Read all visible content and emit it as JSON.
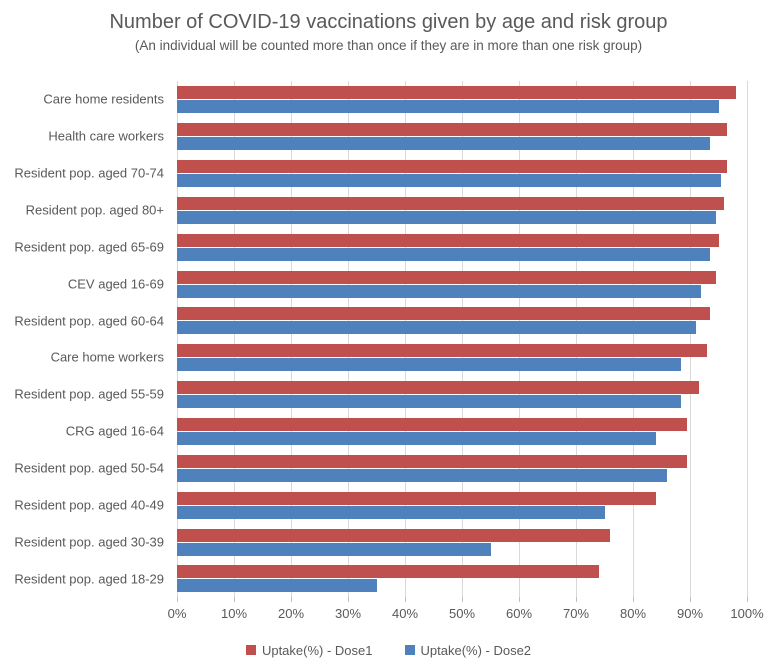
{
  "header": {
    "title": "Number of COVID-19 vaccinations given by age and risk group",
    "subtitle": "(An individual will be counted more than once if they are in more than one risk group)"
  },
  "chart_data": {
    "type": "bar",
    "orientation": "horizontal",
    "title": "Number of COVID-19 vaccinations given by age and risk group",
    "subtitle": "(An individual will be counted more than once if they are in more than one risk group)",
    "categories": [
      "Care home residents",
      "Health care workers",
      "Resident pop. aged 70-74",
      "Resident pop. aged 80+",
      "Resident pop. aged 65-69",
      "CEV aged 16-69",
      "Resident pop. aged 60-64",
      "Care home workers",
      "Resident pop. aged 55-59",
      "CRG aged 16-64",
      "Resident pop. aged 50-54",
      "Resident pop. aged 40-49",
      "Resident pop. aged 30-39",
      "Resident pop. aged 18-29"
    ],
    "series": [
      {
        "name": "Uptake(%) - Dose1",
        "color": "#C0504D",
        "values": [
          98,
          96.5,
          96.5,
          96,
          95,
          94.5,
          93.5,
          93,
          91.5,
          89.5,
          89.5,
          84,
          76,
          74
        ]
      },
      {
        "name": "Uptake(%) - Dose2",
        "color": "#4F81BD",
        "values": [
          95,
          93.5,
          95.5,
          94.5,
          93.5,
          92,
          91,
          88.5,
          88.5,
          84,
          86,
          75,
          55,
          35
        ]
      }
    ],
    "x_axis": {
      "min": 0,
      "max": 100,
      "tick_labels": [
        "0%",
        "10%",
        "20%",
        "30%",
        "40%",
        "50%",
        "60%",
        "70%",
        "80%",
        "90%",
        "100%"
      ],
      "grid": true
    },
    "legend_position": "bottom",
    "colors": {
      "grid": "#D9D9D9",
      "tick": "#BFBFBF",
      "text": "#595959"
    }
  }
}
